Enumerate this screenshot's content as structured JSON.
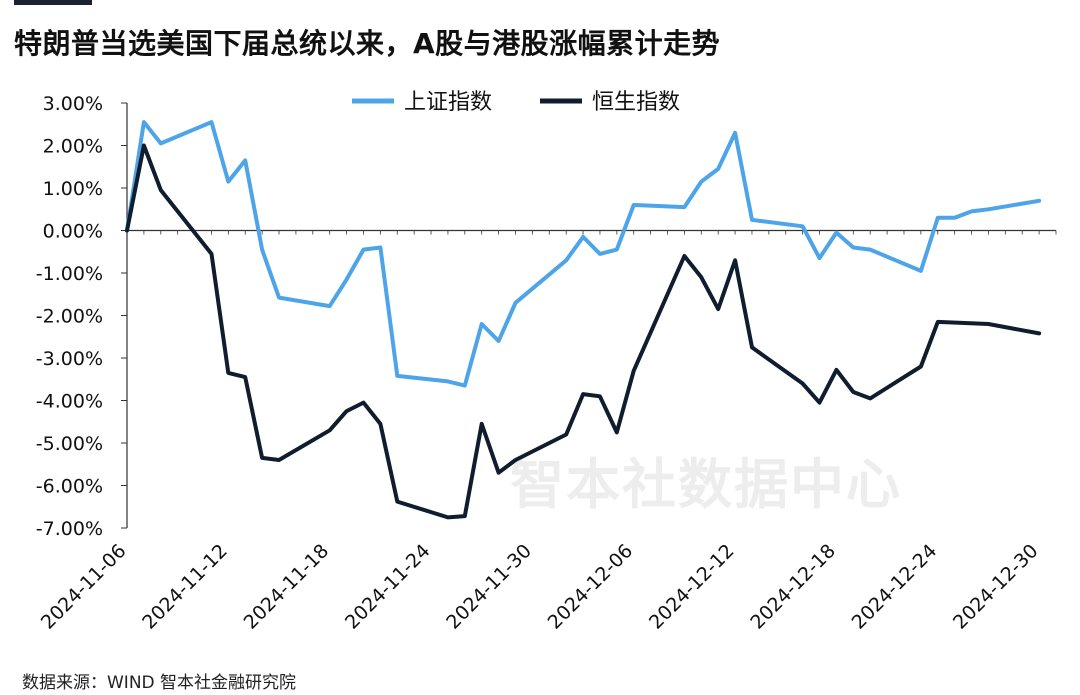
{
  "title": "特朗普当选美国下届总统以来，A股与港股涨幅累计走势",
  "watermark": "智本社数据中心",
  "source": "数据来源：WIND 智本社金融研究院",
  "colors": {
    "shanghai": "#4ea4e8",
    "hangseng": "#0f1d2e",
    "axis": "#333333",
    "title_bar": "#1b2333"
  },
  "chart_data": {
    "type": "line",
    "title": "特朗普当选美国下届总统以来，A股与港股涨幅累计走势",
    "xlabel": "",
    "ylabel": "",
    "ylim": [
      -7,
      3
    ],
    "y_ticks": [
      "3.00%",
      "2.00%",
      "1.00%",
      "0.00%",
      "-1.00%",
      "-2.00%",
      "-3.00%",
      "-4.00%",
      "-5.00%",
      "-6.00%",
      "-7.00%"
    ],
    "y_tick_values": [
      3,
      2,
      1,
      0,
      -1,
      -2,
      -3,
      -4,
      -5,
      -6,
      -7
    ],
    "x_range": [
      "2024-11-06",
      "2024-12-31"
    ],
    "x_ticks": [
      "2024-11-06",
      "2024-11-12",
      "2024-11-18",
      "2024-11-24",
      "2024-11-30",
      "2024-12-06",
      "2024-12-12",
      "2024-12-18",
      "2024-12-24",
      "2024-12-30"
    ],
    "grid": false,
    "legend_position": "top-center",
    "series": [
      {
        "name": "上证指数",
        "color_key": "shanghai",
        "points": [
          [
            "2024-11-06",
            0.0
          ],
          [
            "2024-11-07",
            2.55
          ],
          [
            "2024-11-08",
            2.05
          ],
          [
            "2024-11-11",
            2.55
          ],
          [
            "2024-11-12",
            1.15
          ],
          [
            "2024-11-13",
            1.65
          ],
          [
            "2024-11-14",
            -0.45
          ],
          [
            "2024-11-15",
            -1.58
          ],
          [
            "2024-11-18",
            -1.78
          ],
          [
            "2024-11-19",
            -1.15
          ],
          [
            "2024-11-20",
            -0.45
          ],
          [
            "2024-11-21",
            -0.4
          ],
          [
            "2024-11-22",
            -3.42
          ],
          [
            "2024-11-25",
            -3.55
          ],
          [
            "2024-11-26",
            -3.65
          ],
          [
            "2024-11-27",
            -2.2
          ],
          [
            "2024-11-28",
            -2.6
          ],
          [
            "2024-11-29",
            -1.7
          ],
          [
            "2024-12-02",
            -0.7
          ],
          [
            "2024-12-03",
            -0.15
          ],
          [
            "2024-12-04",
            -0.55
          ],
          [
            "2024-12-05",
            -0.45
          ],
          [
            "2024-12-06",
            0.6
          ],
          [
            "2024-12-09",
            0.55
          ],
          [
            "2024-12-10",
            1.15
          ],
          [
            "2024-12-11",
            1.45
          ],
          [
            "2024-12-12",
            2.3
          ],
          [
            "2024-12-13",
            0.25
          ],
          [
            "2024-12-16",
            0.1
          ],
          [
            "2024-12-17",
            -0.65
          ],
          [
            "2024-12-18",
            -0.05
          ],
          [
            "2024-12-19",
            -0.4
          ],
          [
            "2024-12-20",
            -0.45
          ],
          [
            "2024-12-23",
            -0.95
          ],
          [
            "2024-12-24",
            0.3
          ],
          [
            "2024-12-25",
            0.3
          ],
          [
            "2024-12-26",
            0.45
          ],
          [
            "2024-12-27",
            0.5
          ],
          [
            "2024-12-30",
            0.7
          ]
        ]
      },
      {
        "name": "恒生指数",
        "color_key": "hangseng",
        "points": [
          [
            "2024-11-06",
            0.0
          ],
          [
            "2024-11-07",
            2.0
          ],
          [
            "2024-11-08",
            0.95
          ],
          [
            "2024-11-11",
            -0.55
          ],
          [
            "2024-11-12",
            -3.35
          ],
          [
            "2024-11-13",
            -3.45
          ],
          [
            "2024-11-14",
            -5.35
          ],
          [
            "2024-11-15",
            -5.4
          ],
          [
            "2024-11-18",
            -4.7
          ],
          [
            "2024-11-19",
            -4.25
          ],
          [
            "2024-11-20",
            -4.05
          ],
          [
            "2024-11-21",
            -4.55
          ],
          [
            "2024-11-22",
            -6.38
          ],
          [
            "2024-11-25",
            -6.75
          ],
          [
            "2024-11-26",
            -6.72
          ],
          [
            "2024-11-27",
            -4.55
          ],
          [
            "2024-11-28",
            -5.7
          ],
          [
            "2024-11-29",
            -5.4
          ],
          [
            "2024-12-02",
            -4.8
          ],
          [
            "2024-12-03",
            -3.85
          ],
          [
            "2024-12-04",
            -3.9
          ],
          [
            "2024-12-05",
            -4.75
          ],
          [
            "2024-12-06",
            -3.3
          ],
          [
            "2024-12-09",
            -0.6
          ],
          [
            "2024-12-10",
            -1.1
          ],
          [
            "2024-12-11",
            -1.85
          ],
          [
            "2024-12-12",
            -0.7
          ],
          [
            "2024-12-13",
            -2.75
          ],
          [
            "2024-12-16",
            -3.6
          ],
          [
            "2024-12-17",
            -4.05
          ],
          [
            "2024-12-18",
            -3.28
          ],
          [
            "2024-12-19",
            -3.8
          ],
          [
            "2024-12-20",
            -3.95
          ],
          [
            "2024-12-23",
            -3.2
          ],
          [
            "2024-12-24",
            -2.15
          ],
          [
            "2024-12-27",
            -2.2
          ],
          [
            "2024-12-30",
            -2.42
          ]
        ]
      }
    ]
  }
}
